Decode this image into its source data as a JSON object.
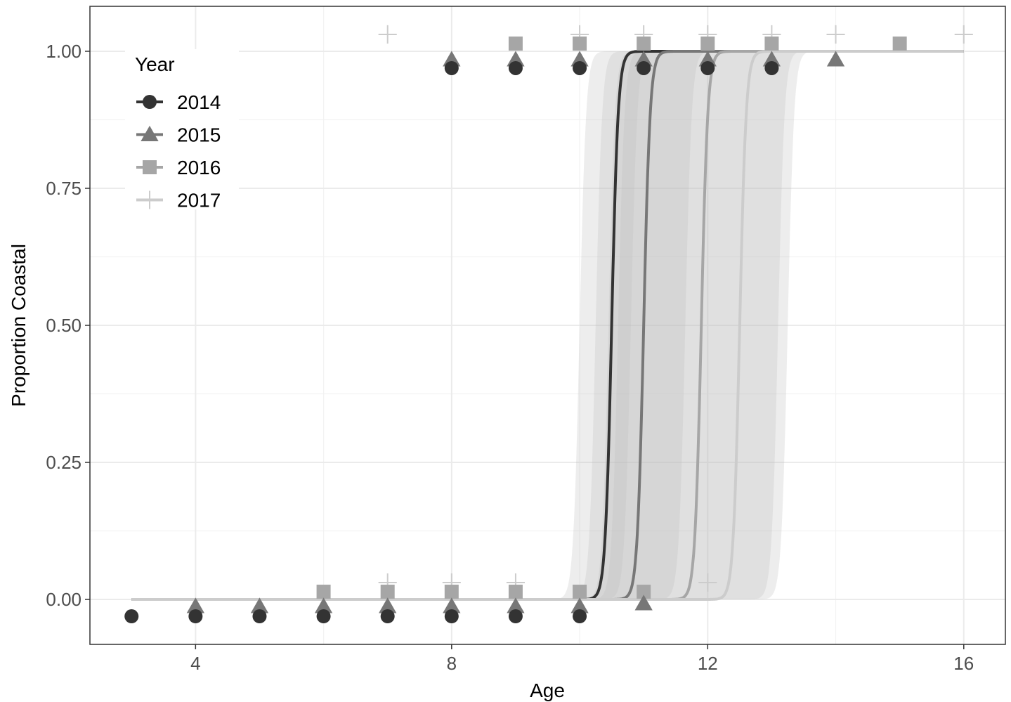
{
  "chart_data": {
    "type": "scatter",
    "xlabel": "Age",
    "ylabel": "Proportion Coastal",
    "xlim": [
      2.35,
      16.65
    ],
    "ylim": [
      -0.082,
      1.082
    ],
    "x_ticks": [
      4,
      8,
      12,
      16
    ],
    "x_tick_labels": [
      "4",
      "8",
      "12",
      "16"
    ],
    "y_ticks": [
      0,
      0.25,
      0.5,
      0.75,
      1.0
    ],
    "y_tick_labels": [
      "0.00",
      "0.25",
      "0.50",
      "0.75",
      "1.00"
    ],
    "grid": true,
    "legend": {
      "title": "Year",
      "placement": "top-left"
    },
    "series": [
      {
        "name": "2014",
        "marker": "circle",
        "color": "#333333",
        "points": [
          [
            3,
            0
          ],
          [
            4,
            0
          ],
          [
            5,
            0
          ],
          [
            6,
            0
          ],
          [
            7,
            0
          ],
          [
            8,
            0
          ],
          [
            9,
            0
          ],
          [
            10,
            0
          ],
          [
            8,
            1
          ],
          [
            9,
            1
          ],
          [
            10,
            1
          ],
          [
            11,
            1
          ],
          [
            12,
            1
          ],
          [
            13,
            1
          ]
        ],
        "curve": {
          "midpoint": 10.5,
          "steepness": 20,
          "x_range": [
            3,
            16
          ]
        },
        "ribbon": {
          "lower_midpoint": 10.25,
          "upper_midpoint": 10.8
        }
      },
      {
        "name": "2015",
        "marker": "triangle",
        "color": "#777777",
        "points": [
          [
            4,
            0
          ],
          [
            5,
            0
          ],
          [
            6,
            0
          ],
          [
            7,
            0
          ],
          [
            8,
            0
          ],
          [
            9,
            0
          ],
          [
            10,
            0
          ],
          [
            11,
            0
          ],
          [
            8,
            1
          ],
          [
            9,
            1
          ],
          [
            10,
            1
          ],
          [
            11,
            1
          ],
          [
            12,
            1
          ],
          [
            13,
            1
          ],
          [
            14,
            1
          ]
        ],
        "curve": {
          "midpoint": 11.0,
          "steepness": 20,
          "x_range": [
            3,
            16
          ]
        },
        "ribbon": {
          "lower_midpoint": 10.45,
          "upper_midpoint": 11.65
        }
      },
      {
        "name": "2016",
        "marker": "square",
        "color": "#a6a6a6",
        "points": [
          [
            6,
            0
          ],
          [
            7,
            0
          ],
          [
            8,
            0
          ],
          [
            9,
            0
          ],
          [
            10,
            0
          ],
          [
            11,
            0
          ],
          [
            9,
            1
          ],
          [
            10,
            1
          ],
          [
            11,
            1
          ],
          [
            12,
            1
          ],
          [
            13,
            1
          ],
          [
            15,
            1
          ]
        ],
        "curve": {
          "midpoint": 11.9,
          "steepness": 20,
          "x_range": [
            3,
            16
          ]
        },
        "ribbon": {
          "lower_midpoint": 10.6,
          "upper_midpoint": 13.1
        }
      },
      {
        "name": "2017",
        "marker": "plus",
        "color": "#cccccc",
        "points": [
          [
            7,
            0
          ],
          [
            8,
            0
          ],
          [
            9,
            0
          ],
          [
            12,
            0
          ],
          [
            7,
            1
          ],
          [
            10,
            1
          ],
          [
            11,
            1
          ],
          [
            12,
            1
          ],
          [
            13,
            1
          ],
          [
            14,
            1
          ],
          [
            16,
            1
          ]
        ],
        "curve": {
          "midpoint": 12.5,
          "steepness": 20,
          "x_range": [
            3,
            16
          ]
        },
        "ribbon": {
          "lower_midpoint": 10.0,
          "upper_midpoint": 13.25
        }
      }
    ]
  }
}
